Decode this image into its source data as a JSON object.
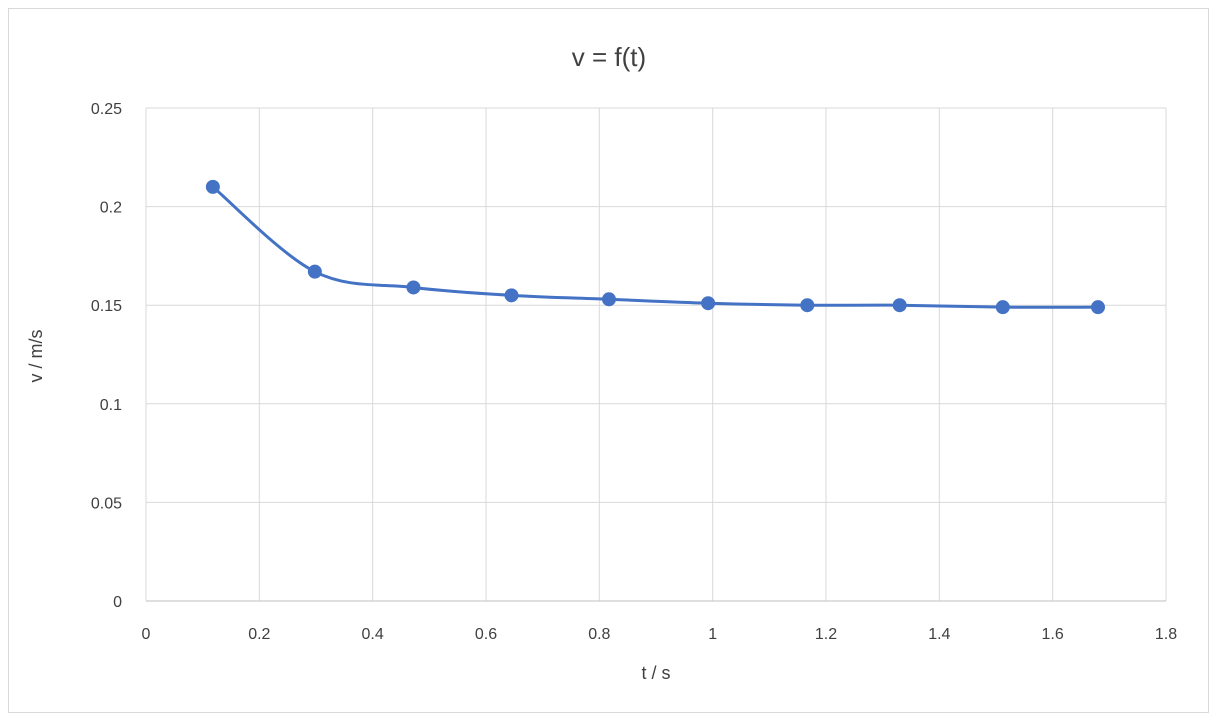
{
  "chart_data": {
    "type": "scatter",
    "title": "v = f(t)",
    "xlabel": "t / s",
    "ylabel": "v / m/s",
    "xlim": [
      0,
      1.8
    ],
    "ylim": [
      0,
      0.25
    ],
    "x_ticks": [
      "0",
      "0.2",
      "0.4",
      "0.6",
      "0.8",
      "1",
      "1.2",
      "1.4",
      "1.6",
      "1.8"
    ],
    "y_ticks": [
      "0",
      "0.05",
      "0.1",
      "0.15",
      "0.2",
      "0.25"
    ],
    "grid": true,
    "smooth_line": true,
    "series": [
      {
        "color": "#4472c4",
        "x": [
          0.118,
          0.298,
          0.472,
          0.645,
          0.817,
          0.992,
          1.167,
          1.33,
          1.512,
          1.68
        ],
        "y": [
          0.21,
          0.167,
          0.159,
          0.155,
          0.153,
          0.151,
          0.15,
          0.15,
          0.149,
          0.149
        ]
      }
    ]
  }
}
